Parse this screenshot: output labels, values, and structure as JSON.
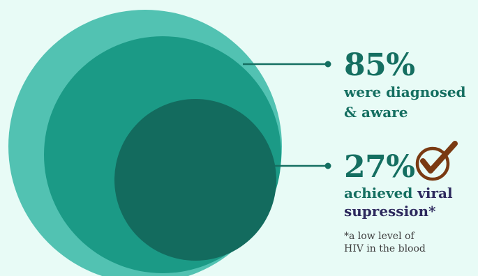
{
  "colors": {
    "background": "#E8FBF6",
    "outer_circle": "#52C2B2",
    "middle_circle": "#1B9A86",
    "inner_circle": "#136B5E",
    "text_teal": "#156F61",
    "text_accent": "#2E2A5E",
    "check": "#7A3A12"
  },
  "stats": [
    {
      "percent": "85%",
      "line1": "were diagnosed",
      "line2": "& aware"
    },
    {
      "percent": "27%",
      "line1_plain": "achieved ",
      "line1_accent": "viral",
      "line2": "supression*",
      "icon": "checkmark-circle-icon"
    }
  ],
  "footnote": {
    "line1": "*a low level of",
    "line2": "HIV in the blood"
  }
}
